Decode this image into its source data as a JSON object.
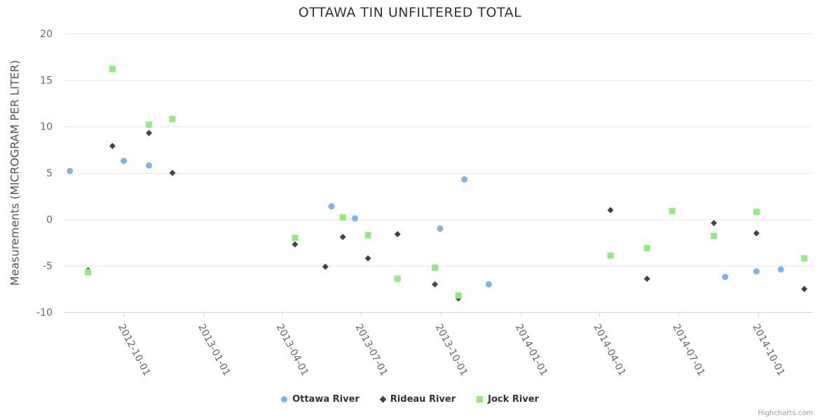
{
  "page": {
    "title": "OTTAWA TIN UNFILTERED TOTAL",
    "credits": "Highcharts.com"
  },
  "chart_data": {
    "type": "scatter",
    "title": "OTTAWA TIN UNFILTERED TOTAL",
    "xlabel": "",
    "ylabel": "Measurements (MICROGRAM PER LITER)",
    "ylim": [
      -10,
      20
    ],
    "y_ticks": [
      20,
      15,
      10,
      5,
      0,
      -5,
      -10
    ],
    "x_ticks": [
      "2012-10-01",
      "2013-01-01",
      "2013-04-01",
      "2013-07-01",
      "2013-10-01",
      "2014-01-01",
      "2014-04-01",
      "2014-07-01",
      "2014-10-01"
    ],
    "x_range": [
      "2012-07-24",
      "2014-12-03"
    ],
    "grid": "horizontal-only",
    "legend_position": "bottom-center",
    "colors": {
      "background": "#ffffff",
      "grid": "#e6e6e6",
      "axis_line": "#ccd6eb",
      "tick_label": "#666666",
      "title": "#333333",
      "axis_title": "#555555",
      "legend_text": "#333333",
      "credits": "#999999"
    },
    "series": [
      {
        "name": "Ottawa River",
        "marker": "circle",
        "color": "#7cb5ec",
        "points": [
          [
            "2012-07-31",
            5.2
          ],
          [
            "2012-10-01",
            6.3
          ],
          [
            "2012-10-30",
            5.8
          ],
          [
            "2013-05-28",
            1.4
          ],
          [
            "2013-06-24",
            0.1
          ],
          [
            "2013-09-30",
            -1.0
          ],
          [
            "2013-10-28",
            4.3
          ],
          [
            "2013-11-25",
            -7.0
          ],
          [
            "2014-08-24",
            -6.2
          ],
          [
            "2014-09-29",
            -5.6
          ],
          [
            "2014-10-27",
            -5.4
          ]
        ]
      },
      {
        "name": "Rideau River",
        "marker": "diamond",
        "color": "#434348",
        "points": [
          [
            "2012-08-21",
            -5.5
          ],
          [
            "2012-09-18",
            7.9
          ],
          [
            "2012-10-30",
            9.3
          ],
          [
            "2012-11-26",
            5.0
          ],
          [
            "2013-04-16",
            -2.7
          ],
          [
            "2013-05-21",
            -5.1
          ],
          [
            "2013-06-10",
            -1.9
          ],
          [
            "2013-07-09",
            -4.2
          ],
          [
            "2013-08-12",
            -1.6
          ],
          [
            "2013-09-24",
            -7.0
          ],
          [
            "2013-10-21",
            -8.5
          ],
          [
            "2014-04-14",
            1.0
          ],
          [
            "2014-05-26",
            -6.4
          ],
          [
            "2014-08-11",
            -0.4
          ],
          [
            "2014-09-29",
            -1.5
          ],
          [
            "2014-11-23",
            -7.5
          ]
        ]
      },
      {
        "name": "Jock River",
        "marker": "square",
        "color": "#90ed7d",
        "points": [
          [
            "2012-08-21",
            -5.7
          ],
          [
            "2012-09-18",
            16.2
          ],
          [
            "2012-10-30",
            10.2
          ],
          [
            "2012-11-26",
            10.8
          ],
          [
            "2013-04-16",
            -2.0
          ],
          [
            "2013-06-10",
            0.2
          ],
          [
            "2013-07-09",
            -1.7
          ],
          [
            "2013-08-12",
            -6.4
          ],
          [
            "2013-09-24",
            -5.2
          ],
          [
            "2013-10-21",
            -8.2
          ],
          [
            "2014-04-14",
            -3.9
          ],
          [
            "2014-05-26",
            -3.1
          ],
          [
            "2014-06-24",
            0.9
          ],
          [
            "2014-08-11",
            -1.8
          ],
          [
            "2014-09-29",
            0.8
          ],
          [
            "2014-11-23",
            -4.2
          ]
        ]
      }
    ]
  }
}
